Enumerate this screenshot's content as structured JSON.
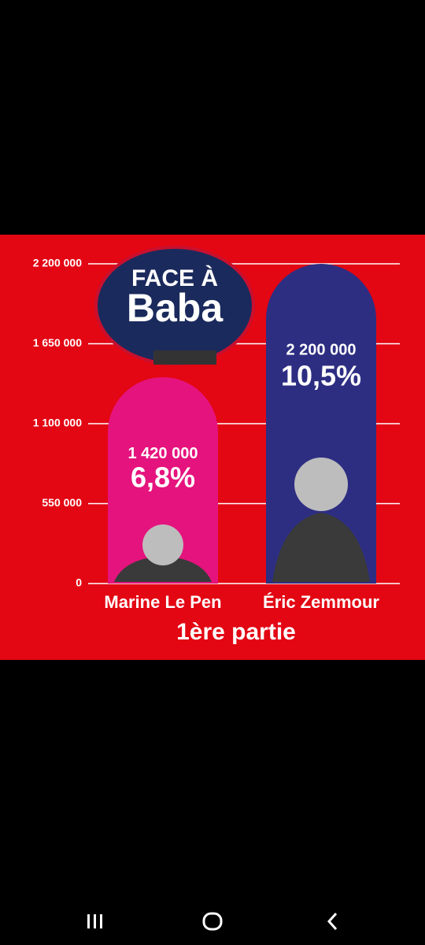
{
  "chart_data": {
    "type": "bar",
    "logo_text": [
      "FACE À",
      "Baba"
    ],
    "xlabel": "1ère partie",
    "categories": [
      "Marine Le Pen",
      "Éric Zemmour"
    ],
    "values": [
      1420000,
      2200000
    ],
    "value_labels": [
      "1 420 000",
      "2 200 000"
    ],
    "shares": [
      6.8,
      10.5
    ],
    "share_labels": [
      "6,8%",
      "10,5%"
    ],
    "colors": [
      "#e5137e",
      "#2d2e82"
    ],
    "ylim": [
      0,
      2200000
    ],
    "yticks": [
      0,
      {
        "value": 550000,
        "label": "550 000"
      },
      {
        "value": 1100000,
        "label": "1 100 000"
      },
      {
        "value": 1650000,
        "label": "1 650 000"
      },
      {
        "value": 2200000,
        "label": "2 200 000"
      }
    ],
    "grid": true
  }
}
